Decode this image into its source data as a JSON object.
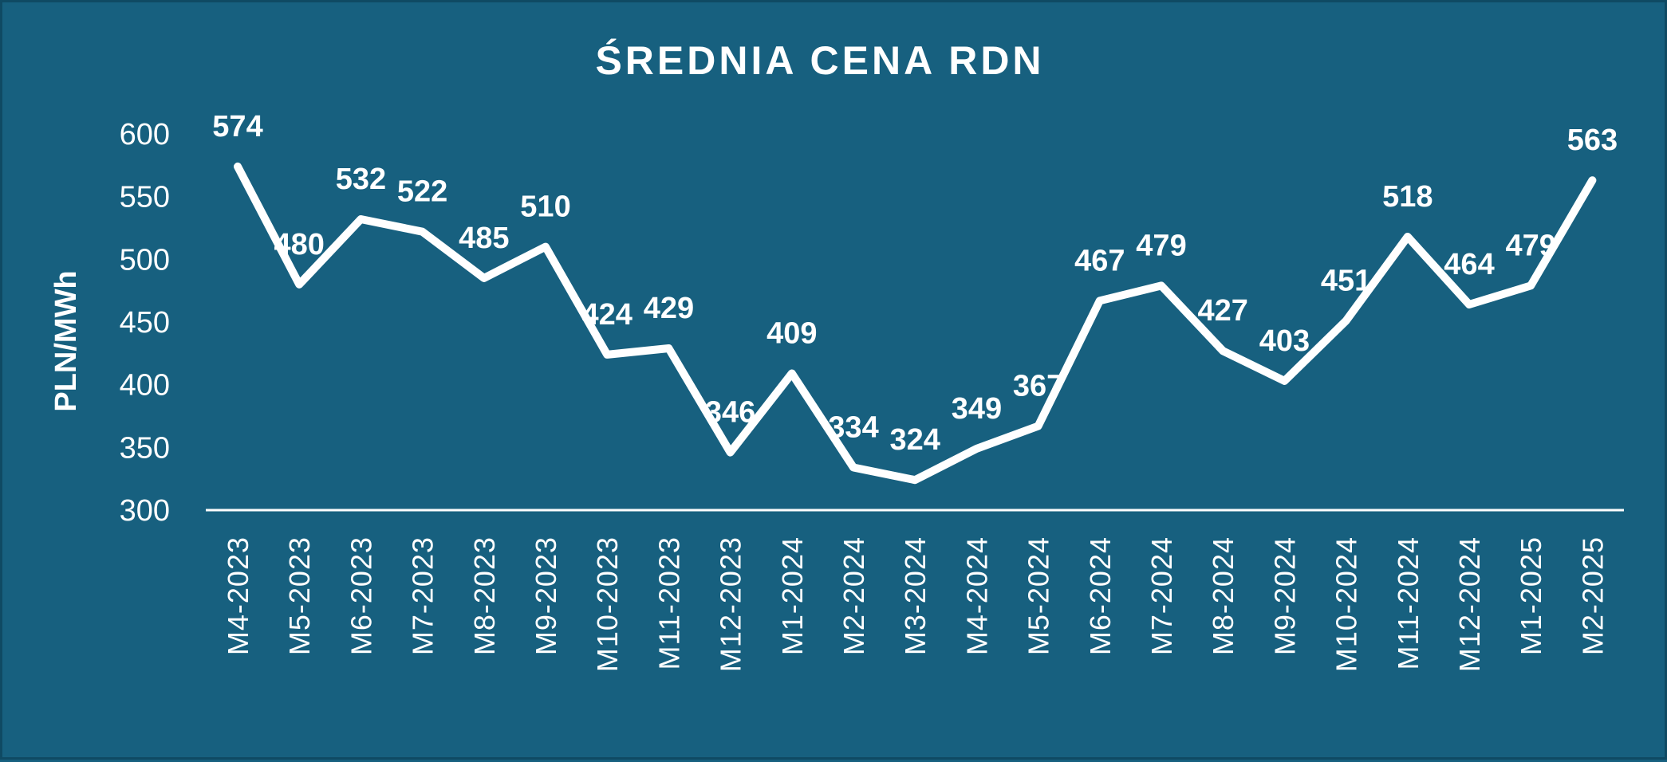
{
  "chart_data": {
    "type": "line",
    "title": "ŚREDNIA  CENA RDN",
    "xlabel": "",
    "ylabel": "PLN/MWh",
    "ylim": [
      300,
      600
    ],
    "yticks": [
      300,
      350,
      400,
      450,
      500,
      550,
      600
    ],
    "grid": false,
    "legend": "none",
    "categories": [
      "M4-2023",
      "M5-2023",
      "M6-2023",
      "M7-2023",
      "M8-2023",
      "M9-2023",
      "M10-2023",
      "M11-2023",
      "M12-2023",
      "M1-2024",
      "M2-2024",
      "M3-2024",
      "M4-2024",
      "M5-2024",
      "M6-2024",
      "M7-2024",
      "M8-2024",
      "M9-2024",
      "M10-2024",
      "M11-2024",
      "M12-2024",
      "M1-2025",
      "M2-2025"
    ],
    "series": [
      {
        "values": [
          574,
          480,
          532,
          522,
          485,
          510,
          424,
          429,
          346,
          409,
          334,
          324,
          349,
          367,
          467,
          479,
          427,
          403,
          451,
          518,
          464,
          479,
          563
        ],
        "labels": [
          "574",
          "480",
          "532",
          "522",
          "485",
          "510",
          "424",
          "429",
          "346",
          "409",
          "334",
          "324",
          "349",
          "367",
          "467",
          "479",
          "427",
          "403",
          "451",
          "518",
          "464",
          "479",
          "563"
        ]
      }
    ],
    "colors": {
      "background": "#17607f",
      "line": "#ffffff",
      "text": "#ffffff"
    }
  }
}
